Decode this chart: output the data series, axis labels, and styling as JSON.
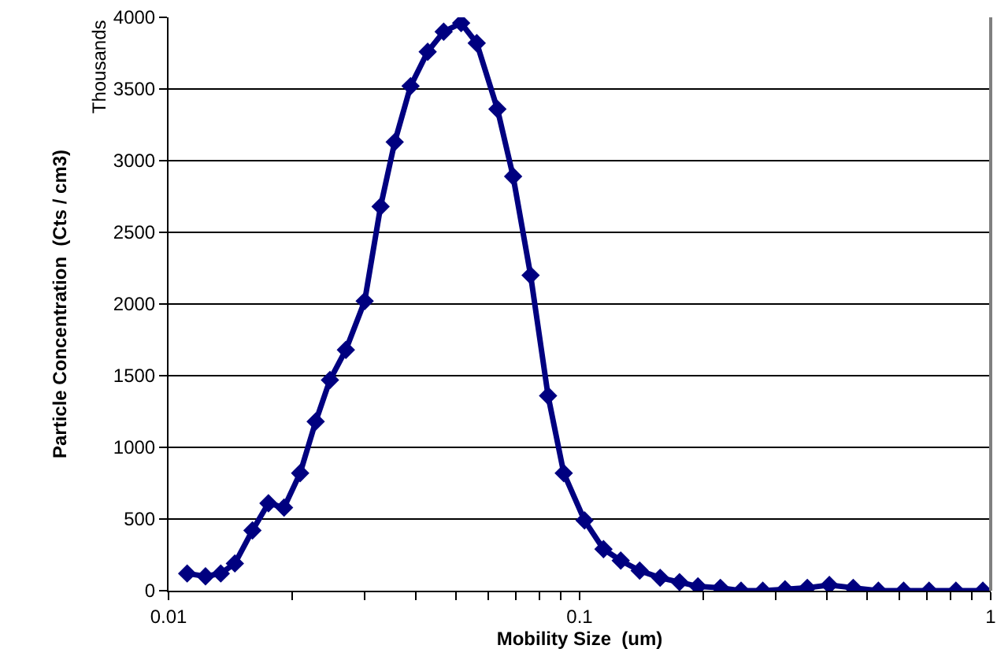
{
  "chart_data": {
    "type": "line",
    "xlabel": "Mobility Size  (um)",
    "ylabel": "Particle Concentration  (Cts / cm3)",
    "annotations": [
      "Thousands"
    ],
    "log": "x",
    "grid": "y",
    "marker": "diamond",
    "line_style": "solid",
    "xlim": [
      0.01,
      1
    ],
    "xticks": [
      0.01,
      {
        "value": 0.02,
        "label": null
      },
      {
        "value": 0.03,
        "label": null
      },
      {
        "value": 0.04,
        "label": null
      },
      {
        "value": 0.05,
        "label": null
      },
      {
        "value": 0.06,
        "label": null
      },
      {
        "value": 0.07,
        "label": null
      },
      {
        "value": 0.08,
        "label": null
      },
      {
        "value": 0.09,
        "label": null
      },
      0.1,
      {
        "value": 0.2,
        "label": null
      },
      {
        "value": 0.3,
        "label": null
      },
      {
        "value": 0.4,
        "label": null
      },
      {
        "value": 0.5,
        "label": null
      },
      {
        "value": 0.6,
        "label": null
      },
      {
        "value": 0.7,
        "label": null
      },
      {
        "value": 0.8,
        "label": null
      },
      {
        "value": 0.9,
        "label": null
      },
      1
    ],
    "ylim": [
      0,
      4000
    ],
    "yticks": [
      0,
      500,
      1000,
      1500,
      2000,
      2500,
      3000,
      3500,
      4000
    ],
    "x": [
      0.0111,
      0.0123,
      0.0134,
      0.0145,
      0.016,
      0.0175,
      0.0191,
      0.0209,
      0.0228,
      0.0247,
      0.027,
      0.03,
      0.0328,
      0.0355,
      0.0388,
      0.0427,
      0.0467,
      0.0515,
      0.0562,
      0.0631,
      0.0689,
      0.076,
      0.0838,
      0.0915,
      0.1028,
      0.1143,
      0.1259,
      0.14,
      0.157,
      0.175,
      0.194,
      0.22,
      0.247,
      0.279,
      0.316,
      0.358,
      0.405,
      0.463,
      0.533,
      0.614,
      0.708,
      0.823,
      0.957
    ],
    "series": [
      {
        "color": "#000080",
        "values": [
          120,
          100,
          120,
          190,
          420,
          610,
          580,
          820,
          1180,
          1470,
          1680,
          2020,
          2680,
          3130,
          3520,
          3760,
          3900,
          3960,
          3820,
          3360,
          2890,
          2200,
          1360,
          820,
          490,
          290,
          210,
          140,
          90,
          60,
          30,
          20,
          0,
          0,
          10,
          20,
          40,
          20,
          0,
          0,
          0,
          0,
          0
        ]
      }
    ]
  }
}
